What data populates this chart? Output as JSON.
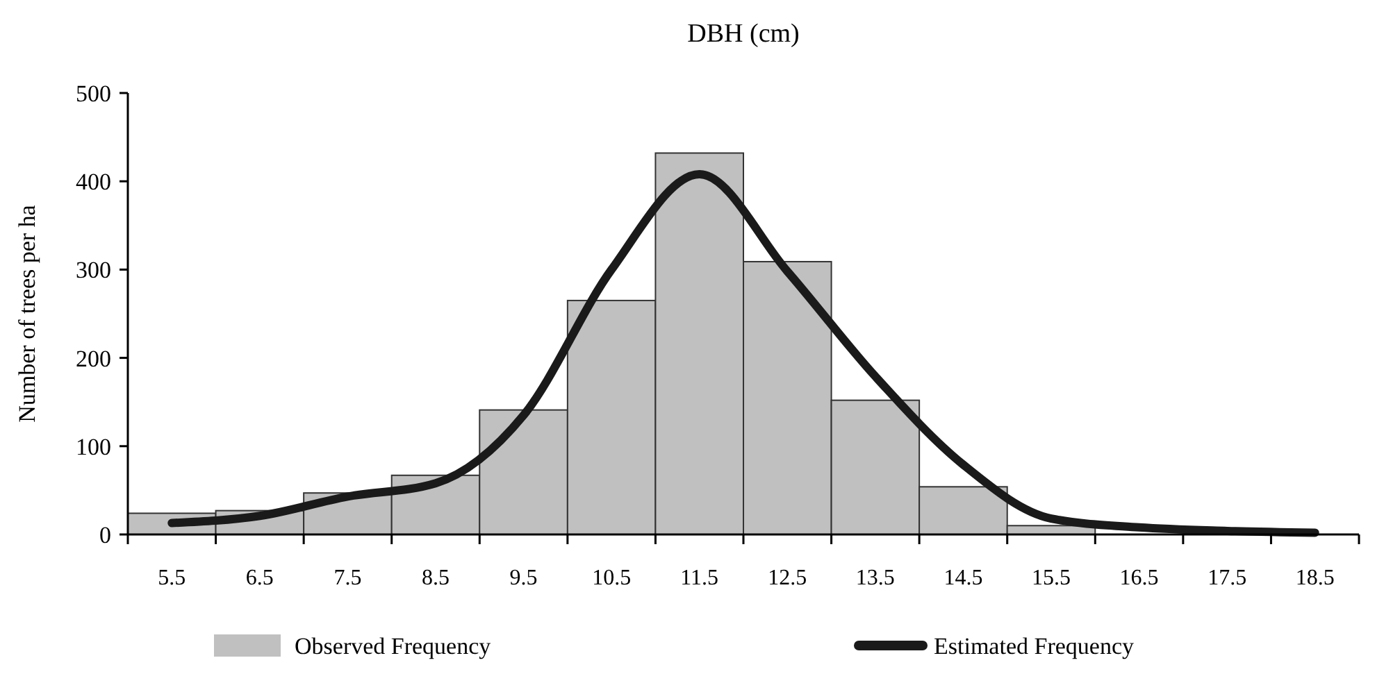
{
  "chart_data": {
    "type": "bar",
    "title": "DBH (cm)",
    "ylabel": "Number of trees per ha",
    "categories": [
      "5.5",
      "6.5",
      "7.5",
      "8.5",
      "9.5",
      "10.5",
      "11.5",
      "12.5",
      "13.5",
      "14.5",
      "15.5",
      "16.5",
      "17.5",
      "18.5"
    ],
    "series": [
      {
        "name": "Observed Frequency",
        "color": "#c0c0c0",
        "values": [
          24,
          27,
          47,
          67,
          141,
          265,
          432,
          309,
          152,
          54,
          10,
          null,
          null,
          null
        ]
      },
      {
        "name": "Estimated Frequency",
        "type": "line",
        "color": "#1a1a1a",
        "values": [
          13,
          21,
          43,
          58,
          135,
          300,
          408,
          298,
          179,
          79,
          18,
          8,
          4,
          2
        ]
      }
    ],
    "ylim": [
      0,
      500
    ],
    "yticks": [
      0,
      100,
      200,
      300,
      400,
      500
    ],
    "grid": false,
    "legend": "bottom",
    "marker": "none",
    "line_style": "solid"
  }
}
